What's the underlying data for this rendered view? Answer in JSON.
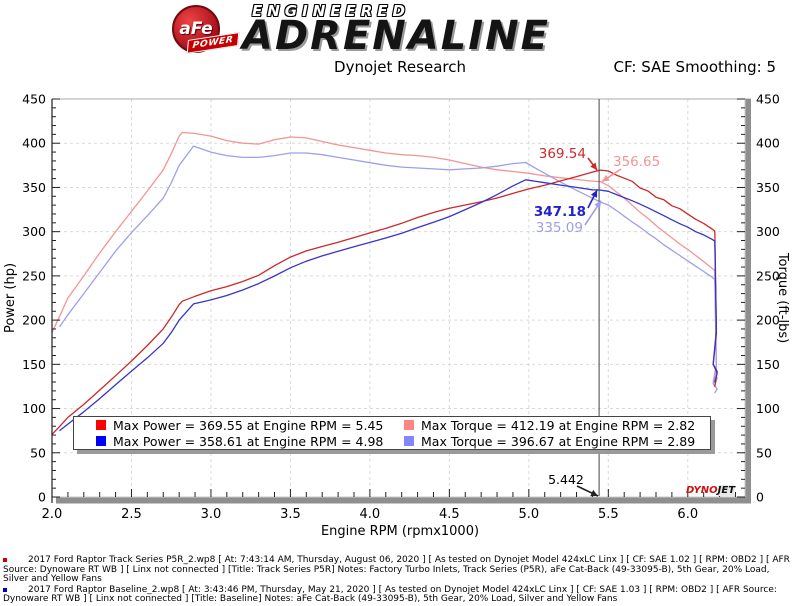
{
  "header": {
    "logo": {
      "badge_main": "aFe",
      "badge_sub": "POWER",
      "line1": "ENGINEERED",
      "line2": "ADRENALINE"
    },
    "title": "Dynojet Research",
    "smoothing": "CF: SAE Smoothing: 5"
  },
  "chart_data": {
    "type": "line",
    "xlabel": "Engine RPM (rpmx1000)",
    "ylabel_left": "Power (hp)",
    "ylabel_right": "Torque (ft-lbs)",
    "xlim": [
      2.0,
      6.36
    ],
    "ylim_left": [
      0,
      450
    ],
    "ylim_right": [
      0,
      450
    ],
    "x_major_ticks": [
      2.0,
      2.5,
      3.0,
      3.5,
      4.0,
      4.5,
      5.0,
      5.5,
      6.0
    ],
    "y_major_ticks": [
      0,
      50,
      100,
      150,
      200,
      250,
      300,
      350,
      400,
      450
    ],
    "grid": "dashed",
    "cursor_rpm": 5.442,
    "cursor_label": "5.442",
    "series": [
      {
        "name": "track-series-torque",
        "legend": "Track Series P5R Torque",
        "color": "#f29595",
        "axis": "torque",
        "points": [
          [
            2.0,
            186
          ],
          [
            2.05,
            205
          ],
          [
            2.1,
            225
          ],
          [
            2.2,
            250
          ],
          [
            2.3,
            276
          ],
          [
            2.4,
            300
          ],
          [
            2.5,
            323
          ],
          [
            2.6,
            346
          ],
          [
            2.7,
            370
          ],
          [
            2.75,
            388
          ],
          [
            2.8,
            408
          ],
          [
            2.82,
            412.2
          ],
          [
            2.9,
            411
          ],
          [
            3.0,
            408
          ],
          [
            3.1,
            403
          ],
          [
            3.2,
            400
          ],
          [
            3.3,
            399
          ],
          [
            3.4,
            404
          ],
          [
            3.5,
            407
          ],
          [
            3.6,
            406
          ],
          [
            3.7,
            402
          ],
          [
            3.8,
            398
          ],
          [
            3.9,
            395
          ],
          [
            4.0,
            392
          ],
          [
            4.1,
            389
          ],
          [
            4.2,
            387
          ],
          [
            4.3,
            386
          ],
          [
            4.4,
            384
          ],
          [
            4.5,
            381
          ],
          [
            4.6,
            377
          ],
          [
            4.7,
            373
          ],
          [
            4.8,
            370
          ],
          [
            4.9,
            368
          ],
          [
            5.0,
            366
          ],
          [
            5.1,
            363
          ],
          [
            5.2,
            361
          ],
          [
            5.3,
            359
          ],
          [
            5.4,
            357.2
          ],
          [
            5.45,
            356.5
          ],
          [
            5.5,
            352
          ],
          [
            5.55,
            345
          ],
          [
            5.6,
            338
          ],
          [
            5.65,
            330
          ],
          [
            5.7,
            322
          ],
          [
            5.75,
            315
          ],
          [
            5.8,
            307
          ],
          [
            5.85,
            300
          ],
          [
            5.9,
            293
          ],
          [
            5.95,
            286
          ],
          [
            6.0,
            280
          ],
          [
            6.05,
            273
          ],
          [
            6.1,
            266
          ],
          [
            6.15,
            259
          ],
          [
            6.17,
            256
          ],
          [
            6.18,
            150
          ],
          [
            6.16,
            130
          ],
          [
            6.185,
            135
          ],
          [
            6.17,
            126
          ]
        ]
      },
      {
        "name": "baseline-torque",
        "legend": "Baseline Torque",
        "color": "#9f9fe8",
        "axis": "torque",
        "points": [
          [
            2.05,
            193
          ],
          [
            2.1,
            206
          ],
          [
            2.2,
            230
          ],
          [
            2.3,
            254
          ],
          [
            2.4,
            278
          ],
          [
            2.5,
            299
          ],
          [
            2.6,
            318
          ],
          [
            2.7,
            338
          ],
          [
            2.75,
            355
          ],
          [
            2.8,
            375
          ],
          [
            2.89,
            396.7
          ],
          [
            2.95,
            393
          ],
          [
            3.0,
            390
          ],
          [
            3.1,
            386
          ],
          [
            3.2,
            384
          ],
          [
            3.3,
            384
          ],
          [
            3.4,
            386
          ],
          [
            3.5,
            389
          ],
          [
            3.6,
            389
          ],
          [
            3.7,
            387
          ],
          [
            3.8,
            384
          ],
          [
            3.9,
            381
          ],
          [
            4.0,
            378
          ],
          [
            4.1,
            375
          ],
          [
            4.2,
            373
          ],
          [
            4.3,
            372
          ],
          [
            4.4,
            371
          ],
          [
            4.5,
            370
          ],
          [
            4.6,
            371
          ],
          [
            4.7,
            372
          ],
          [
            4.8,
            374
          ],
          [
            4.9,
            377
          ],
          [
            4.98,
            378.2
          ],
          [
            5.05,
            371
          ],
          [
            5.1,
            366
          ],
          [
            5.15,
            361
          ],
          [
            5.2,
            356
          ],
          [
            5.3,
            346.8
          ],
          [
            5.4,
            337.8
          ],
          [
            5.45,
            333.5
          ],
          [
            5.5,
            330
          ],
          [
            5.55,
            324
          ],
          [
            5.6,
            317.5
          ],
          [
            5.65,
            311
          ],
          [
            5.7,
            305
          ],
          [
            5.75,
            298
          ],
          [
            5.8,
            292
          ],
          [
            5.85,
            285
          ],
          [
            5.9,
            279
          ],
          [
            5.95,
            273
          ],
          [
            6.0,
            267
          ],
          [
            6.05,
            261
          ],
          [
            6.1,
            255
          ],
          [
            6.15,
            249
          ],
          [
            6.17,
            246
          ],
          [
            6.18,
            145
          ],
          [
            6.16,
            128
          ],
          [
            6.185,
            122
          ],
          [
            6.17,
            118
          ]
        ]
      },
      {
        "name": "track-series-power",
        "legend": "Track Series P5R Power",
        "color": "#cc2929",
        "axis": "hp",
        "points": [
          [
            2.0,
            70.8
          ],
          [
            2.05,
            80
          ],
          [
            2.1,
            90
          ],
          [
            2.2,
            104.7
          ],
          [
            2.3,
            120.9
          ],
          [
            2.4,
            137.1
          ],
          [
            2.5,
            153.8
          ],
          [
            2.6,
            171.3
          ],
          [
            2.7,
            190.2
          ],
          [
            2.75,
            203.2
          ],
          [
            2.8,
            217.5
          ],
          [
            2.82,
            221.4
          ],
          [
            2.9,
            226.9
          ],
          [
            3.0,
            233.1
          ],
          [
            3.1,
            237.9
          ],
          [
            3.2,
            243.7
          ],
          [
            3.3,
            250.7
          ],
          [
            3.4,
            261.5
          ],
          [
            3.5,
            271.2
          ],
          [
            3.6,
            278.3
          ],
          [
            3.7,
            283.2
          ],
          [
            3.8,
            288
          ],
          [
            3.9,
            293.3
          ],
          [
            4.0,
            298.6
          ],
          [
            4.1,
            303.7
          ],
          [
            4.2,
            309.5
          ],
          [
            4.3,
            316
          ],
          [
            4.4,
            321.7
          ],
          [
            4.5,
            326.5
          ],
          [
            4.6,
            330.2
          ],
          [
            4.7,
            333.8
          ],
          [
            4.8,
            338.1
          ],
          [
            4.9,
            343.3
          ],
          [
            5.0,
            348.4
          ],
          [
            5.1,
            352.5
          ],
          [
            5.2,
            357.4
          ],
          [
            5.3,
            362.3
          ],
          [
            5.4,
            367.3
          ],
          [
            5.45,
            369.6
          ],
          [
            5.5,
            368.6
          ],
          [
            5.55,
            364
          ],
          [
            5.6,
            360.4
          ],
          [
            5.65,
            357
          ],
          [
            5.7,
            349.4
          ],
          [
            5.75,
            346
          ],
          [
            5.8,
            339
          ],
          [
            5.85,
            336
          ],
          [
            5.9,
            329.2
          ],
          [
            5.95,
            326
          ],
          [
            6.0,
            319.9
          ],
          [
            6.05,
            314
          ],
          [
            6.1,
            309.4
          ],
          [
            6.15,
            303.3
          ],
          [
            6.17,
            300.8
          ],
          [
            6.18,
            190
          ],
          [
            6.16,
            150
          ],
          [
            6.185,
            142
          ],
          [
            6.17,
            125
          ]
        ]
      },
      {
        "name": "baseline-power",
        "legend": "Baseline Power",
        "color": "#3535cc",
        "axis": "hp",
        "points": [
          [
            2.05,
            75.3
          ],
          [
            2.1,
            82.4
          ],
          [
            2.2,
            96.3
          ],
          [
            2.3,
            111.2
          ],
          [
            2.4,
            127
          ],
          [
            2.5,
            142.3
          ],
          [
            2.6,
            157.4
          ],
          [
            2.7,
            173.8
          ],
          [
            2.75,
            185.9
          ],
          [
            2.8,
            200
          ],
          [
            2.89,
            218.3
          ],
          [
            2.95,
            220.7
          ],
          [
            3.0,
            222.8
          ],
          [
            3.1,
            227.8
          ],
          [
            3.2,
            234
          ],
          [
            3.3,
            241.3
          ],
          [
            3.4,
            249.9
          ],
          [
            3.5,
            259.2
          ],
          [
            3.6,
            266.6
          ],
          [
            3.7,
            272.6
          ],
          [
            3.8,
            277.8
          ],
          [
            3.9,
            282.9
          ],
          [
            4.0,
            287.9
          ],
          [
            4.1,
            292.8
          ],
          [
            4.2,
            298.3
          ],
          [
            4.3,
            304.6
          ],
          [
            4.4,
            310.7
          ],
          [
            4.5,
            317
          ],
          [
            4.6,
            324.9
          ],
          [
            4.7,
            333
          ],
          [
            4.8,
            341.8
          ],
          [
            4.9,
            351.7
          ],
          [
            4.98,
            358.6
          ],
          [
            5.05,
            356.7
          ],
          [
            5.1,
            355.4
          ],
          [
            5.2,
            352.6
          ],
          [
            5.3,
            350.1
          ],
          [
            5.4,
            347.3
          ],
          [
            5.442,
            347.2
          ],
          [
            5.5,
            345.6
          ],
          [
            5.55,
            342
          ],
          [
            5.6,
            338.5
          ],
          [
            5.65,
            335
          ],
          [
            5.7,
            331.1
          ],
          [
            5.75,
            327
          ],
          [
            5.8,
            322.5
          ],
          [
            5.85,
            318
          ],
          [
            5.9,
            313.4
          ],
          [
            5.95,
            309
          ],
          [
            6.0,
            305
          ],
          [
            6.05,
            300
          ],
          [
            6.1,
            296.3
          ],
          [
            6.15,
            291.6
          ],
          [
            6.17,
            289.3
          ],
          [
            6.18,
            185
          ],
          [
            6.16,
            150
          ],
          [
            6.185,
            140
          ],
          [
            6.17,
            130
          ]
        ]
      }
    ],
    "cursor_readouts": [
      {
        "text": "369.54",
        "value": 369.54,
        "color": "#cc2929",
        "bold": false
      },
      {
        "text": "356.65",
        "value": 356.65,
        "color": "#f29595",
        "bold": false
      },
      {
        "text": "347.18",
        "value": 347.18,
        "color": "#2222cc",
        "bold": true
      },
      {
        "text": "335.09",
        "value": 335.09,
        "color": "#9f9fe8",
        "bold": false
      }
    ]
  },
  "legend": {
    "items": [
      {
        "swatch": "#ff0000",
        "text": "Max Power = 369.55 at Engine RPM = 5.45"
      },
      {
        "swatch": "#ff8585",
        "text": "Max Torque = 412.19 at Engine RPM = 2.82"
      },
      {
        "swatch": "#0000ff",
        "text": "Max Power = 358.61 at Engine RPM = 4.98"
      },
      {
        "swatch": "#8585ff",
        "text": "Max Torque = 396.67 at Engine RPM = 2.89"
      }
    ]
  },
  "watermark": {
    "part1": "DYNO",
    "part2": "JET"
  },
  "footer": {
    "runs": [
      {
        "bullet_color": "#cc0000",
        "text": "2017 Ford Raptor Track Series P5R_2.wp8 [ At: 7:43:14 AM, Thursday, August 06, 2020 ] [ As tested on Dynojet Model 424xLC Linx ] [ CF: SAE 1.02 ] [ RPM: OBD2 ] [ AFR Source: Dynoware RT WB ] [ Linx not connected ] [Title: Track Series P5R]  Notes: Factory Turbo Inlets, Track Series (P5R), aFe Cat-Back (49-33095-B), 5th Gear, 20% Load, Silver and Yellow Fans"
      },
      {
        "bullet_color": "#0000cc",
        "text": "2017 Ford Raptor Baseline_2.wp8 [ At: 3:43:46 PM, Thursday, May 21, 2020 ] [ As tested on Dynojet Model 424xLC Linx ] [ CF: SAE 1.03 ] [ RPM: OBD2 ] [ AFR Source: Dynoware RT WB ] [ Linx not connected ] [Title: Baseline]  Notes: aFe Cat-Back (49-33095-B), 5th Gear, 20% Load, Silver and Yellow Fans"
      }
    ]
  },
  "colors": {
    "track_power": "#cc2929",
    "track_torque": "#f29595",
    "baseline_power": "#3535cc",
    "baseline_torque": "#9f9fe8",
    "axis_bar": "#8f8f8f",
    "grid": "#d9d9d9",
    "cursor": "#444444"
  }
}
